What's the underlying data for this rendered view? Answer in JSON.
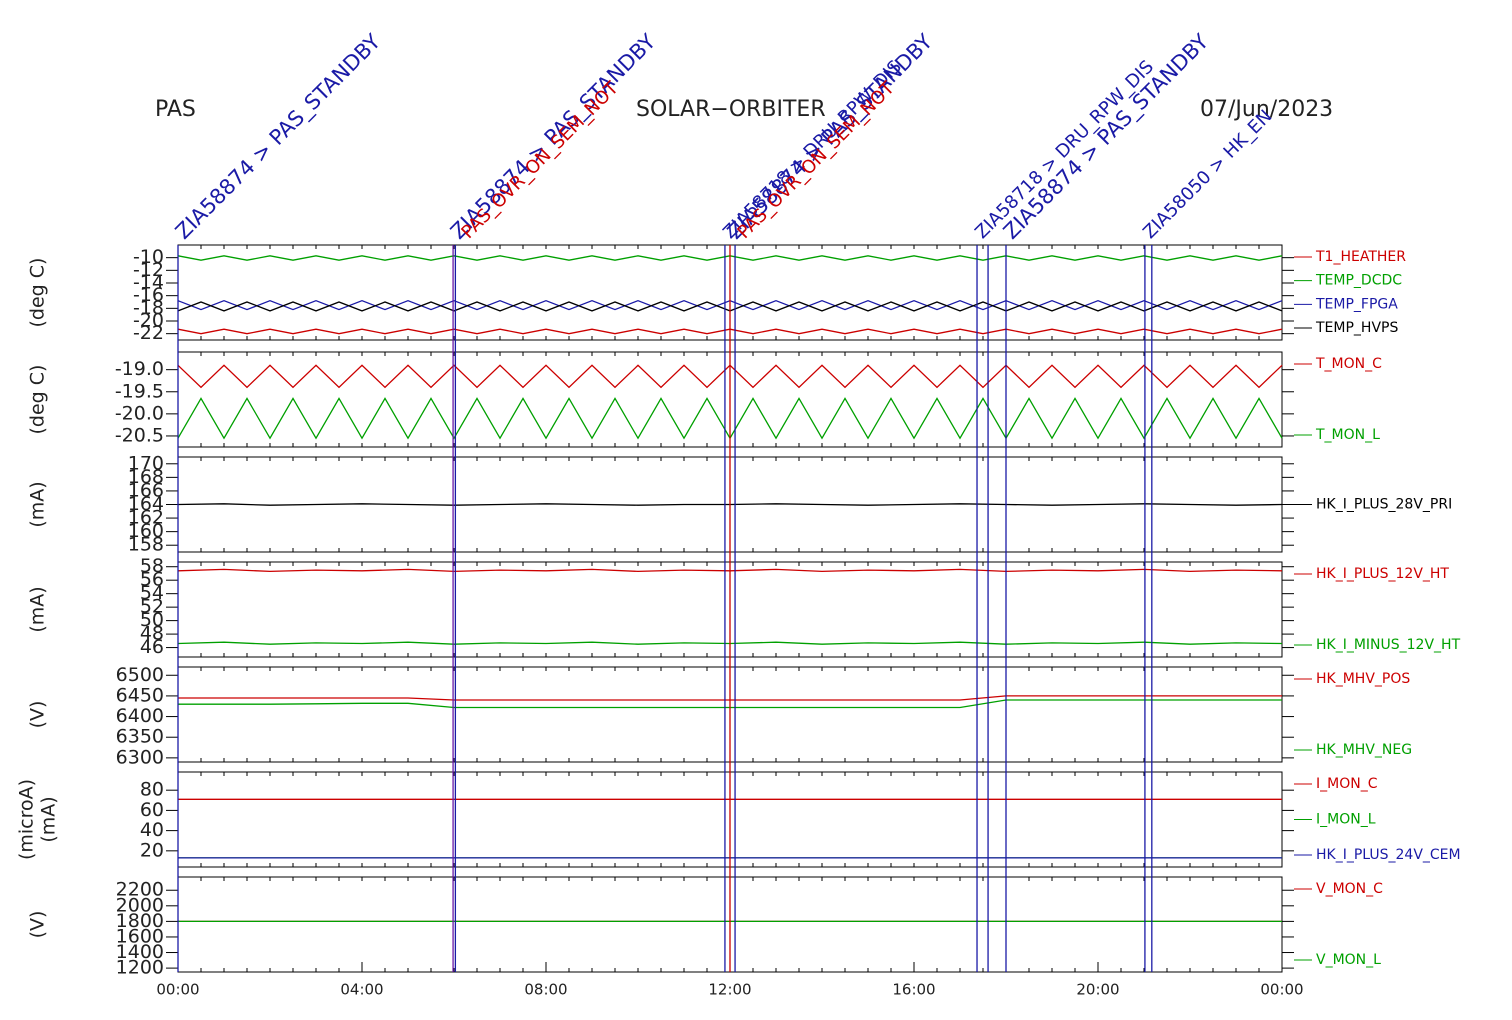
{
  "header": {
    "left": "PAS",
    "center": "SOLAR−ORBITER",
    "right": "07/Jun/2023"
  },
  "events": [
    {
      "x": 0,
      "color": "#1a1aa6"
    },
    {
      "x": 5.98,
      "color": "#6a1aa6"
    },
    {
      "x": 6.03,
      "color": "#1a1aa6"
    },
    {
      "x": 11.89,
      "color": "#1a1aa6"
    },
    {
      "x": 12.0,
      "color": "#cc0000"
    },
    {
      "x": 12.11,
      "color": "#1a1aa6"
    },
    {
      "x": 17.37,
      "color": "#1a1aa6"
    },
    {
      "x": 17.61,
      "color": "#1a1aa6"
    },
    {
      "x": 18.0,
      "color": "#1a1aa6"
    },
    {
      "x": 21.02,
      "color": "#1a1aa6"
    },
    {
      "x": 21.17,
      "color": "#1a1aa6"
    }
  ],
  "annotations": [
    {
      "x": 0,
      "label": "ZIA58874 > PAS_STANDBY",
      "color": "#1a1aa6",
      "big": true
    },
    {
      "x": 5.98,
      "label": "ZIA58874 > PAS_STANDBY",
      "color": "#1a1aa6",
      "big": true
    },
    {
      "x": 6.2,
      "label": "PAS_OVR_ON_SEM_NOT",
      "color": "#cc0000",
      "big": false
    },
    {
      "x": 11.89,
      "label": "ZIA58718 > DRU_RPW_DIS",
      "color": "#1a1aa6",
      "big": false
    },
    {
      "x": 12.0,
      "label": "ZIA58874 > PAS_STANDBY",
      "color": "#1a1aa6",
      "big": true
    },
    {
      "x": 12.2,
      "label": "PAS_OVR_ON_SEM_NOT",
      "color": "#cc0000",
      "big": false
    },
    {
      "x": 17.37,
      "label": "ZIA58718 > DRU_RPW_DIS",
      "color": "#1a1aa6",
      "big": false
    },
    {
      "x": 18.0,
      "label": "ZIA58874 > PAS_STANDBY",
      "color": "#1a1aa6",
      "big": true
    },
    {
      "x": 21.02,
      "label": "ZIA58050 > HK_EN",
      "color": "#1a1aa6",
      "big": false
    }
  ],
  "chart_data": [
    {
      "type": "line",
      "ylabel": [
        "(deg C)"
      ],
      "xlim": [
        0,
        24
      ],
      "ylim": [
        -23,
        -8
      ],
      "yticks": [
        -10,
        -12,
        -14,
        -16,
        -18,
        -20,
        -22
      ],
      "x": [
        0,
        0.5,
        1,
        1.5,
        2,
        2.5,
        3,
        3.5,
        4,
        4.5,
        5,
        5.5,
        6,
        6.5,
        7,
        7.5,
        8,
        8.5,
        9,
        9.5,
        10,
        10.5,
        11,
        11.5,
        12,
        12.5,
        13,
        13.5,
        14,
        14.5,
        15,
        15.5,
        16,
        16.5,
        17,
        17.5,
        18,
        18.5,
        19,
        19.5,
        20,
        20.5,
        21,
        21.5,
        22,
        22.5,
        23,
        23.5,
        24
      ],
      "series": [
        {
          "name": "T1_HEATHER",
          "color": "#cc0000",
          "values": [
            -21.3,
            -22,
            -21.3,
            -22,
            -21.3,
            -22,
            -21.3,
            -22,
            -21.3,
            -22,
            -21.3,
            -22,
            -21.3,
            -22,
            -21.3,
            -22,
            -21.3,
            -22,
            -21.3,
            -22,
            -21.3,
            -22,
            -21.3,
            -22,
            -21.3,
            -22,
            -21.3,
            -22,
            -21.3,
            -22,
            -21.3,
            -22,
            -21.3,
            -22,
            -21.3,
            -22,
            -21.3,
            -22,
            -21.3,
            -22,
            -21.3,
            -22,
            -21.3,
            -22,
            -21.3,
            -22,
            -21.3,
            -22,
            -21.3
          ]
        },
        {
          "name": "TEMP_DCDC",
          "color": "#00a000",
          "values": [
            -9.7,
            -10.4,
            -9.7,
            -10.4,
            -9.7,
            -10.4,
            -9.7,
            -10.4,
            -9.7,
            -10.4,
            -9.7,
            -10.4,
            -9.7,
            -10.4,
            -9.7,
            -10.4,
            -9.7,
            -10.4,
            -9.7,
            -10.4,
            -9.7,
            -10.4,
            -9.7,
            -10.4,
            -9.7,
            -10.4,
            -9.7,
            -10.4,
            -9.7,
            -10.4,
            -9.7,
            -10.4,
            -9.7,
            -10.4,
            -9.7,
            -10.4,
            -9.7,
            -10.4,
            -9.7,
            -10.4,
            -9.7,
            -10.4,
            -9.7,
            -10.4,
            -9.7,
            -10.4,
            -9.7,
            -10.4,
            -9.7
          ]
        },
        {
          "name": "TEMP_FPGA",
          "color": "#1a1aa6",
          "values": [
            -16.8,
            -18.2,
            -16.8,
            -18.2,
            -16.8,
            -18.2,
            -16.8,
            -18.2,
            -16.8,
            -18.2,
            -16.8,
            -18.2,
            -16.8,
            -18.2,
            -16.8,
            -18.2,
            -16.8,
            -18.2,
            -16.8,
            -18.2,
            -16.8,
            -18.2,
            -16.8,
            -18.2,
            -16.8,
            -18.2,
            -16.8,
            -18.2,
            -16.8,
            -18.2,
            -16.8,
            -18.2,
            -16.8,
            -18.2,
            -16.8,
            -18.2,
            -16.8,
            -18.2,
            -16.8,
            -18.2,
            -16.8,
            -18.2,
            -16.8,
            -18.2,
            -16.8,
            -18.2,
            -16.8,
            -18.2,
            -16.8
          ]
        },
        {
          "name": "TEMP_HVPS",
          "color": "#000000",
          "values": [
            -18.4,
            -17,
            -18.4,
            -17,
            -18.4,
            -17,
            -18.4,
            -17,
            -18.4,
            -17,
            -18.4,
            -17,
            -18.4,
            -17,
            -18.4,
            -17,
            -18.4,
            -17,
            -18.4,
            -17,
            -18.4,
            -17,
            -18.4,
            -17,
            -18.4,
            -17,
            -18.4,
            -17,
            -18.4,
            -17,
            -18.4,
            -17,
            -18.4,
            -17,
            -18.4,
            -17,
            -18.4,
            -17,
            -18.4,
            -17,
            -18.4,
            -17,
            -18.4,
            -17,
            -18.4,
            -17,
            -18.4,
            -17,
            -18.4
          ]
        }
      ]
    },
    {
      "type": "line",
      "ylabel": [
        "(deg C)"
      ],
      "xlim": [
        0,
        24
      ],
      "ylim": [
        -20.75,
        -18.6
      ],
      "yticks": [
        {
          "value": -19,
          "label": "-19.0"
        },
        {
          "value": -19.5,
          "label": "-19.5"
        },
        {
          "value": -20,
          "label": "-20.0"
        },
        {
          "value": -20.5,
          "label": "-20.5"
        }
      ],
      "x": [
        0,
        0.5,
        1,
        1.5,
        2,
        2.5,
        3,
        3.5,
        4,
        4.5,
        5,
        5.5,
        6,
        6.5,
        7,
        7.5,
        8,
        8.5,
        9,
        9.5,
        10,
        10.5,
        11,
        11.5,
        12,
        12.5,
        13,
        13.5,
        14,
        14.5,
        15,
        15.5,
        16,
        16.5,
        17,
        17.5,
        18,
        18.5,
        19,
        19.5,
        20,
        20.5,
        21,
        21.5,
        22,
        22.5,
        23,
        23.5,
        24
      ],
      "series": [
        {
          "name": "T_MON_C",
          "color": "#cc0000",
          "values": [
            -18.9,
            -19.4,
            -18.9,
            -19.4,
            -18.9,
            -19.4,
            -18.9,
            -19.4,
            -18.9,
            -19.4,
            -18.9,
            -19.4,
            -18.9,
            -19.4,
            -18.9,
            -19.4,
            -18.9,
            -19.4,
            -18.9,
            -19.4,
            -18.9,
            -19.4,
            -18.9,
            -19.4,
            -18.9,
            -19.4,
            -18.9,
            -19.4,
            -18.9,
            -19.4,
            -18.9,
            -19.4,
            -18.9,
            -19.4,
            -18.9,
            -19.4,
            -18.9,
            -19.4,
            -18.9,
            -19.4,
            -18.9,
            -19.4,
            -18.9,
            -19.4,
            -18.9,
            -19.4,
            -18.9,
            -19.4,
            -18.9
          ]
        },
        {
          "name": "T_MON_L",
          "color": "#00a000",
          "values": [
            -20.55,
            -19.65,
            -20.55,
            -19.65,
            -20.55,
            -19.65,
            -20.55,
            -19.65,
            -20.55,
            -19.65,
            -20.55,
            -19.65,
            -20.55,
            -19.65,
            -20.55,
            -19.65,
            -20.55,
            -19.65,
            -20.55,
            -19.65,
            -20.55,
            -19.65,
            -20.55,
            -19.65,
            -20.55,
            -19.65,
            -20.55,
            -19.65,
            -20.55,
            -19.65,
            -20.55,
            -19.65,
            -20.55,
            -19.65,
            -20.55,
            -19.65,
            -20.55,
            -19.65,
            -20.55,
            -19.65,
            -20.55,
            -19.65,
            -20.55,
            -19.65,
            -20.55,
            -19.65,
            -20.55,
            -19.65,
            -20.55
          ]
        }
      ]
    },
    {
      "type": "line",
      "ylabel": [
        "(mA)"
      ],
      "xlim": [
        0,
        24
      ],
      "ylim": [
        157,
        171
      ],
      "yticks": [
        158,
        160,
        162,
        164,
        166,
        168,
        170
      ],
      "x": [
        0,
        1,
        2,
        3,
        4,
        5,
        6,
        7,
        8,
        9,
        10,
        11,
        12,
        13,
        14,
        15,
        16,
        17,
        18,
        19,
        20,
        21,
        22,
        23,
        24
      ],
      "series": [
        {
          "name": "HK_I_PLUS_28V_PRI",
          "color": "#000000",
          "values": [
            164,
            164.1,
            163.9,
            164,
            164.1,
            164,
            163.9,
            164,
            164.1,
            164,
            163.9,
            164,
            164,
            164.1,
            164,
            163.9,
            164,
            164.1,
            164,
            163.9,
            164,
            164.1,
            164,
            163.9,
            164
          ]
        }
      ]
    },
    {
      "type": "line",
      "ylabel": [
        "(mA)"
      ],
      "xlim": [
        0,
        24
      ],
      "ylim": [
        44.6,
        58.7
      ],
      "yticks": [
        46,
        48,
        50,
        52,
        54,
        56,
        58
      ],
      "x": [
        0,
        1,
        2,
        3,
        4,
        5,
        6,
        7,
        8,
        9,
        10,
        11,
        12,
        13,
        14,
        15,
        16,
        17,
        18,
        19,
        20,
        21,
        22,
        23,
        24
      ],
      "series": [
        {
          "name": "HK_I_PLUS_12V_HT",
          "color": "#cc0000",
          "values": [
            57.4,
            57.6,
            57.3,
            57.5,
            57.4,
            57.6,
            57.3,
            57.5,
            57.4,
            57.6,
            57.3,
            57.5,
            57.4,
            57.6,
            57.3,
            57.5,
            57.4,
            57.6,
            57.3,
            57.5,
            57.4,
            57.6,
            57.3,
            57.5,
            57.4
          ]
        },
        {
          "name": "HK_I_MINUS_12V_HT",
          "color": "#00a000",
          "values": [
            46.6,
            46.8,
            46.5,
            46.7,
            46.6,
            46.8,
            46.5,
            46.7,
            46.6,
            46.8,
            46.5,
            46.7,
            46.6,
            46.8,
            46.5,
            46.7,
            46.6,
            46.8,
            46.5,
            46.7,
            46.6,
            46.8,
            46.5,
            46.7,
            46.6
          ]
        }
      ]
    },
    {
      "type": "line",
      "ylabel": [
        "(V)"
      ],
      "xlim": [
        0,
        24
      ],
      "ylim": [
        6290,
        6520
      ],
      "yticks": [
        6300,
        6350,
        6400,
        6450,
        6500
      ],
      "x": [
        0,
        1,
        2,
        3,
        4,
        5,
        6,
        7,
        8,
        9,
        10,
        11,
        12,
        13,
        14,
        15,
        16,
        17,
        18,
        19,
        20,
        21,
        22,
        23,
        24
      ],
      "series": [
        {
          "name": "HK_MHV_POS",
          "color": "#cc0000",
          "values": [
            6445,
            6445,
            6445,
            6445,
            6445,
            6445,
            6440,
            6440,
            6440,
            6440,
            6440,
            6440,
            6440,
            6440,
            6440,
            6440,
            6440,
            6440,
            6450,
            6450,
            6450,
            6450,
            6450,
            6450,
            6450
          ]
        },
        {
          "name": "HK_MHV_NEG",
          "color": "#00a000",
          "values": [
            6430,
            6430,
            6430,
            6431,
            6432,
            6432,
            6422,
            6422,
            6422,
            6422,
            6422,
            6422,
            6422,
            6422,
            6422,
            6422,
            6422,
            6422,
            6440,
            6440,
            6440,
            6440,
            6440,
            6440,
            6440
          ]
        }
      ]
    },
    {
      "type": "line",
      "ylabel": [
        "(microA)",
        "(mA)"
      ],
      "xlim": [
        0,
        24
      ],
      "ylim": [
        4,
        98
      ],
      "yticks": [
        20,
        40,
        60,
        80
      ],
      "x": [
        0,
        1,
        2,
        3,
        4,
        5,
        6,
        7,
        8,
        9,
        10,
        11,
        12,
        13,
        14,
        15,
        16,
        17,
        18,
        19,
        20,
        21,
        22,
        23,
        24
      ],
      "series": [
        {
          "name": "I_MON_C",
          "color": "#cc0000",
          "values": [
            71,
            71,
            71,
            71,
            71,
            71,
            71,
            71,
            71,
            71,
            71,
            71,
            71,
            71,
            71,
            71,
            71,
            71,
            71,
            71,
            71,
            71,
            71,
            71,
            71
          ]
        },
        {
          "name": "I_MON_L",
          "color": "#00a000",
          "values": [
            13,
            13,
            13,
            13,
            13,
            13,
            13,
            13,
            13,
            13,
            13,
            13,
            13,
            13,
            13,
            13,
            13,
            13,
            13,
            13,
            13,
            13,
            13,
            13,
            13
          ]
        },
        {
          "name": "HK_I_PLUS_24V_CEM",
          "color": "#1a1aa6",
          "values": [
            13,
            13,
            13,
            13,
            13,
            13,
            13,
            13,
            13,
            13,
            13,
            13,
            13,
            13,
            13,
            13,
            13,
            13,
            13,
            13,
            13,
            13,
            13,
            13,
            13
          ]
        }
      ]
    },
    {
      "type": "line",
      "ylabel": [
        "(V)"
      ],
      "xlim": [
        0,
        24
      ],
      "ylim": [
        1150,
        2370
      ],
      "yticks": [
        1200,
        1400,
        1600,
        1800,
        2000,
        2200
      ],
      "xticks": [
        {
          "value": 0,
          "label": "00:00"
        },
        {
          "value": 4,
          "label": "04:00"
        },
        {
          "value": 8,
          "label": "08:00"
        },
        {
          "value": 12,
          "label": "12:00"
        },
        {
          "value": 16,
          "label": "16:00"
        },
        {
          "value": 20,
          "label": "20:00"
        },
        {
          "value": 24,
          "label": "00:00"
        }
      ],
      "x": [
        0,
        1,
        2,
        3,
        4,
        5,
        6,
        7,
        8,
        9,
        10,
        11,
        12,
        13,
        14,
        15,
        16,
        17,
        18,
        19,
        20,
        21,
        22,
        23,
        24
      ],
      "series": [
        {
          "name": "V_MON_C",
          "color": "#cc0000",
          "values": [
            1800,
            1800,
            1800,
            1800,
            1800,
            1800,
            1800,
            1800,
            1800,
            1800,
            1800,
            1800,
            1800,
            1800,
            1800,
            1800,
            1800,
            1800,
            1800,
            1800,
            1800,
            1800,
            1800,
            1800,
            1800
          ]
        },
        {
          "name": "V_MON_L",
          "color": "#00a000",
          "values": [
            1800,
            1800,
            1800,
            1800,
            1800,
            1800,
            1800,
            1800,
            1800,
            1800,
            1800,
            1800,
            1800,
            1800,
            1800,
            1800,
            1800,
            1800,
            1800,
            1800,
            1800,
            1800,
            1800,
            1800,
            1800
          ]
        }
      ]
    }
  ]
}
